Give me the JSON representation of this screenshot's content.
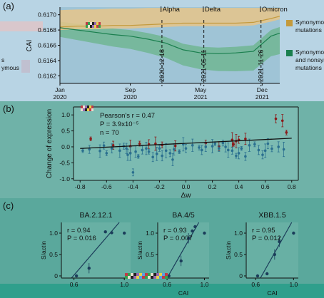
{
  "panels": {
    "a": "(a)",
    "b": "(b)",
    "c": "(c)"
  },
  "chart_data": [
    {
      "type": "area",
      "panel": "(a)",
      "ylabel": "CAI",
      "ylim": [
        0.6161,
        0.6171
      ],
      "y_ticks": [
        "0.6162",
        "0.6164",
        "0.6166",
        "0.6168",
        "0.6170"
      ],
      "x_ticks": [
        {
          "top": "Jan",
          "bottom": "2020"
        },
        {
          "top": "Sep",
          "bottom": "2020"
        },
        {
          "top": "May",
          "bottom": "2021"
        },
        {
          "top": "Dec",
          "bottom": "2021"
        }
      ],
      "x_dates": [
        "2020-01",
        "2020-09",
        "2021-05",
        "2021-12"
      ],
      "variants": [
        "Alpha",
        "Delta",
        "Omicron"
      ],
      "date_markers": [
        "2020-12-18",
        "2021-05-11",
        "2021-11-26"
      ],
      "series": [
        {
          "name": "Synonymous mutations",
          "color": "#c49a3c",
          "legend_text": "Synonymous mutations",
          "legend_lines": [
            "Synonymous",
            "mutations"
          ],
          "x": [
            "2020-01",
            "2020-03",
            "2020-05",
            "2020-07",
            "2020-09",
            "2020-11",
            "2021-01",
            "2021-03",
            "2021-05",
            "2021-07",
            "2021-09",
            "2021-11",
            "2022-01",
            "2022-02"
          ],
          "values": [
            0.61684,
            0.61685,
            0.61685,
            0.61686,
            0.61686,
            0.61687,
            0.61688,
            0.61689,
            0.61689,
            0.61689,
            0.61689,
            0.6169,
            0.61695,
            0.61698
          ]
        },
        {
          "name": "Synonymous and nonsynonymous mutations",
          "color": "#1a7f4e",
          "legend_text": "Synonymous and nonsynonymous mutations",
          "legend_lines": [
            "Synonymous",
            "and nonsynonymous",
            "mutations"
          ],
          "x": [
            "2020-01",
            "2020-03",
            "2020-05",
            "2020-07",
            "2020-09",
            "2020-11",
            "2021-01",
            "2021-03",
            "2021-05",
            "2021-07",
            "2021-09",
            "2021-11",
            "2022-01",
            "2022-02"
          ],
          "values": [
            0.61683,
            0.6168,
            0.61677,
            0.61674,
            0.61672,
            0.61668,
            0.61663,
            0.61654,
            0.6165,
            0.61649,
            0.6165,
            0.61652,
            0.61672,
            0.61676
          ]
        }
      ],
      "left_legend_fragments": [
        "s",
        "ymous"
      ]
    },
    {
      "type": "scatter",
      "panel": "(b)",
      "xlabel": "Δw",
      "ylabel": "Change of expression",
      "xlim": [
        -0.85,
        0.85
      ],
      "ylim": [
        -1.05,
        1.25
      ],
      "x_ticks": [
        "-0.8",
        "-0.6",
        "-0.4",
        "-0.2",
        "0.0",
        "0.2",
        "0.4",
        "0.6",
        "0.8"
      ],
      "y_ticks": [
        "-1.0",
        "-0.5",
        "0.0",
        "0.5",
        "1.0"
      ],
      "annotations": [
        "Pearson's r = 0.47",
        "P = 3.9x10⁻⁵",
        "n = 70"
      ],
      "fit": {
        "x": [
          -0.8,
          0.8
        ],
        "y": [
          -0.05,
          0.27
        ]
      },
      "series": [
        {
          "name": "",
          "color": "#8b1a1a",
          "points": [
            [
              -0.72,
              0.25
            ],
            [
              -0.55,
              0.05
            ],
            [
              -0.42,
              0.02
            ],
            [
              -0.35,
              0.1
            ],
            [
              -0.28,
              0.08
            ],
            [
              -0.23,
              0.1
            ],
            [
              -0.18,
              0.06
            ],
            [
              -0.08,
              0.03
            ],
            [
              0.35,
              0.22
            ],
            [
              0.4,
              0.22
            ],
            [
              0.45,
              0.25
            ],
            [
              0.36,
              0.08
            ],
            [
              0.68,
              0.88
            ],
            [
              0.73,
              0.82
            ],
            [
              0.76,
              0.45
            ],
            [
              0.25,
              0.02
            ],
            [
              0.38,
              0.18
            ],
            [
              0.15,
              0.12
            ]
          ]
        },
        {
          "name": "",
          "color": "#2a6f8f",
          "points": [
            [
              -0.78,
              -0.12
            ],
            [
              -0.73,
              -0.08
            ],
            [
              -0.65,
              -0.13
            ],
            [
              -0.6,
              -0.2
            ],
            [
              -0.56,
              -0.05
            ],
            [
              -0.5,
              -0.12
            ],
            [
              -0.47,
              0.02
            ],
            [
              -0.45,
              -0.05
            ],
            [
              -0.42,
              -0.2
            ],
            [
              -0.4,
              -0.8
            ],
            [
              -0.38,
              -0.15
            ],
            [
              -0.36,
              -0.3
            ],
            [
              -0.33,
              -0.1
            ],
            [
              -0.3,
              -0.05
            ],
            [
              -0.28,
              -0.15
            ],
            [
              -0.25,
              -0.32
            ],
            [
              -0.22,
              -0.22
            ],
            [
              -0.2,
              -0.05
            ],
            [
              -0.18,
              -0.28
            ],
            [
              -0.15,
              -0.12
            ],
            [
              -0.12,
              -0.2
            ],
            [
              -0.09,
              -0.08
            ],
            [
              -0.05,
              -0.15
            ],
            [
              0.0,
              -0.05
            ],
            [
              0.05,
              0.05
            ],
            [
              0.1,
              -0.02
            ],
            [
              0.15,
              0.0
            ],
            [
              0.2,
              0.02
            ],
            [
              0.25,
              -0.05
            ],
            [
              0.3,
              0.0
            ],
            [
              0.32,
              -0.1
            ],
            [
              0.35,
              -0.12
            ],
            [
              0.4,
              -0.2
            ],
            [
              0.42,
              -0.05
            ],
            [
              0.45,
              -0.3
            ],
            [
              0.48,
              0.05
            ],
            [
              0.52,
              0.08
            ],
            [
              0.55,
              -0.1
            ],
            [
              0.6,
              -0.12
            ],
            [
              0.65,
              -0.06
            ],
            [
              0.7,
              0.0
            ],
            [
              0.74,
              -0.08
            ],
            [
              -0.62,
              0.04
            ],
            [
              -0.44,
              -0.25
            ],
            [
              0.22,
              0.1
            ],
            [
              0.58,
              -0.25
            ],
            [
              -0.1,
              -0.4
            ],
            [
              0.38,
              -0.28
            ],
            [
              0.12,
              -0.1
            ],
            [
              -0.02,
              0.08
            ],
            [
              0.28,
              0.12
            ],
            [
              0.62,
              0.1
            ]
          ]
        }
      ]
    },
    {
      "type": "scatter",
      "panel": "(c)",
      "title": "BA.2.12.1",
      "xlabel": "",
      "ylabel": "S/actin",
      "xlim": [
        0.5,
        1.05
      ],
      "ylim": [
        -0.05,
        1.25
      ],
      "x_ticks": [
        "0.6",
        "1.0"
      ],
      "y_ticks": [
        "0",
        "0.5",
        "1.0"
      ],
      "annotations": [
        "r = 0.94",
        "P = 0.016"
      ],
      "points": [
        [
          0.62,
          0.0
        ],
        [
          0.72,
          0.18
        ],
        [
          0.85,
          1.03
        ],
        [
          0.9,
          1.01
        ],
        [
          1.0,
          1.0
        ]
      ],
      "fit": {
        "x": [
          0.58,
          0.96
        ],
        "y": [
          -0.05,
          1.25
        ]
      }
    },
    {
      "type": "scatter",
      "panel": "(c)",
      "title": "BA.4/5",
      "xlabel": "CAI",
      "ylabel": "S/actin",
      "xlim": [
        0.5,
        1.05
      ],
      "ylim": [
        -0.05,
        1.25
      ],
      "x_ticks": [
        "0.6",
        "1.0"
      ],
      "y_ticks": [
        "0",
        "0.5",
        "1.0"
      ],
      "annotations": [
        "r = 0.93",
        "P = 0.007"
      ],
      "points": [
        [
          0.62,
          0.0
        ],
        [
          0.75,
          0.35
        ],
        [
          0.83,
          0.88
        ],
        [
          0.87,
          1.05
        ],
        [
          0.9,
          1.15
        ],
        [
          1.0,
          1.0
        ]
      ],
      "fit": {
        "x": [
          0.6,
          0.94
        ],
        "y": [
          -0.05,
          1.25
        ]
      }
    },
    {
      "type": "scatter",
      "panel": "(c)",
      "title": "XBB.1.5",
      "xlabel": "CAI",
      "ylabel": "S/actin",
      "xlim": [
        0.5,
        1.05
      ],
      "ylim": [
        -0.05,
        1.25
      ],
      "x_ticks": [
        "0.6",
        "1.0"
      ],
      "y_ticks": [
        "0",
        "0.5",
        "1.0"
      ],
      "annotations": [
        "r = 0.95",
        "P = 0.012"
      ],
      "points": [
        [
          0.62,
          0.0
        ],
        [
          0.72,
          0.05
        ],
        [
          0.8,
          0.5
        ],
        [
          0.85,
          0.8
        ],
        [
          1.0,
          1.0
        ]
      ],
      "fit": {
        "x": [
          0.65,
          0.98
        ],
        "y": [
          -0.05,
          1.25
        ]
      }
    }
  ]
}
